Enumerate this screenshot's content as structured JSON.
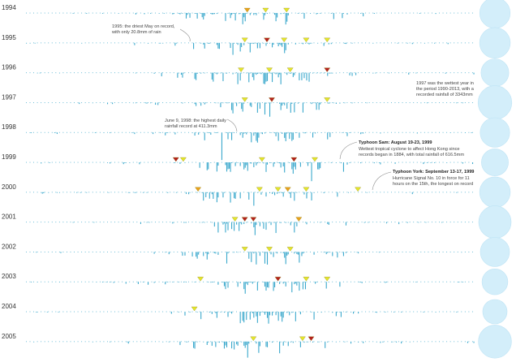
{
  "chart_data": {
    "type": "bar",
    "years": [
      "1994",
      "1995",
      "1996",
      "1997",
      "1998",
      "1999",
      "2000",
      "2001",
      "2002",
      "2003",
      "2004",
      "2005"
    ],
    "annual_rainfall_mm": [
      2726,
      2754,
      2249,
      3343,
      2565,
      2129,
      2752,
      3092,
      2490,
      1942,
      1739,
      3215
    ],
    "max_daily_rainfall_mm": 411.3,
    "colors": {
      "bars": "#3aa8cc",
      "annual_bubble": "#d3eefa",
      "typhoon_low": "#e4e62a",
      "typhoon_mid": "#e8a11b",
      "typhoon_high": "#b3201c"
    },
    "typhoons": [
      {
        "year": "1994",
        "days": [
          180,
          195,
          212
        ],
        "levels": [
          2,
          1,
          1
        ]
      },
      {
        "year": "1995",
        "days": [
          178,
          196,
          210,
          228,
          245
        ],
        "levels": [
          1,
          3,
          1,
          1,
          1
        ]
      },
      {
        "year": "1996",
        "days": [
          175,
          198,
          215,
          245
        ],
        "levels": [
          1,
          1,
          1,
          3
        ]
      },
      {
        "year": "1997",
        "days": [
          178,
          200,
          245
        ],
        "levels": [
          1,
          3,
          1
        ]
      },
      {
        "year": "1998",
        "days": [],
        "levels": []
      },
      {
        "year": "1999",
        "days": [
          122,
          128,
          192,
          218,
          235
        ],
        "levels": [
          3,
          1,
          1,
          3,
          1
        ]
      },
      {
        "year": "2000",
        "days": [
          140,
          190,
          205,
          213,
          228,
          270
        ],
        "levels": [
          2,
          1,
          1,
          2,
          1,
          1
        ]
      },
      {
        "year": "2001",
        "days": [
          170,
          178,
          185,
          222
        ],
        "levels": [
          1,
          3,
          3,
          2
        ]
      },
      {
        "year": "2002",
        "days": [
          178,
          198,
          215
        ],
        "levels": [
          1,
          1,
          1
        ]
      },
      {
        "year": "2003",
        "days": [
          142,
          205,
          228,
          245
        ],
        "levels": [
          1,
          3,
          1,
          1
        ]
      },
      {
        "year": "2004",
        "days": [
          137
        ],
        "levels": [
          1
        ]
      },
      {
        "year": "2005",
        "days": [
          185,
          225,
          232
        ],
        "levels": [
          1,
          1,
          3
        ]
      }
    ],
    "annotations": [
      {
        "id": "may1995",
        "lines": [
          "1995: the driest May on record,",
          "with only 20.8mm of rain"
        ]
      },
      {
        "id": "wettest1997",
        "lines": [
          "1997 was the wettest year in",
          "the period 1990-2013, with a",
          "recorded rainfall of 3343mm"
        ]
      },
      {
        "id": "june1998",
        "lines": [
          "June 9, 1998: the highest daily",
          "rainfall record at 411.3mm"
        ]
      },
      {
        "id": "sam1999",
        "title": "Typhoon Sam: August 19-23, 1999",
        "lines": [
          "Wettest tropical cyclone to affect Hong Kong since",
          "records began in 1884, with total rainfall of 616.5mm"
        ]
      },
      {
        "id": "york1999",
        "title": "Typhoon York: September 13-17, 1999",
        "lines": [
          "Hurricane Signal No. 10 in force for 11",
          "hours on the 15th, the longest on record"
        ]
      }
    ]
  }
}
